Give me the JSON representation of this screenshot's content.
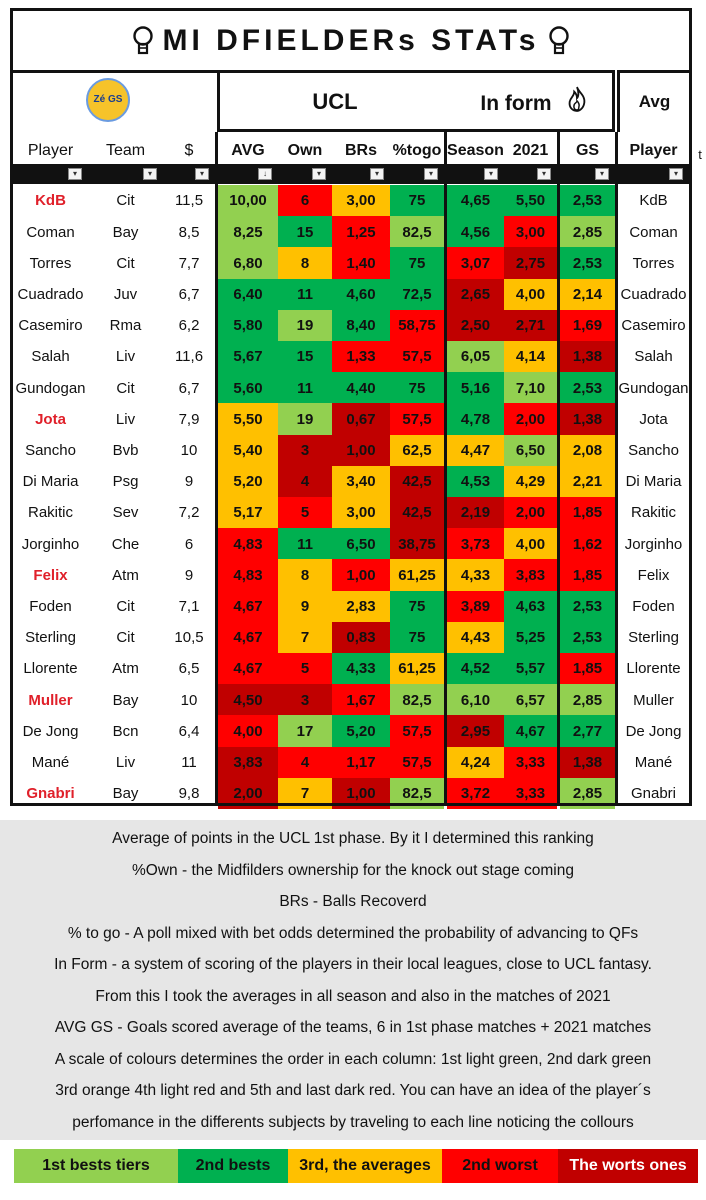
{
  "title": "MI DFIELDERs STATs",
  "logo_text": "Zé GS",
  "headers": {
    "ucl": "UCL",
    "in_form": "In form",
    "avg": "Avg",
    "col_player": "Player",
    "col_team": "Team",
    "col_price": "$",
    "col_avg": "AVG",
    "col_own": "Own",
    "col_brs": "BRs",
    "col_togo": "%togo",
    "col_season": "Season",
    "col_2021": "2021",
    "col_gs": "GS",
    "col_player2": "Player",
    "stray": "t"
  },
  "colors": {
    "light_green": "#92d050",
    "dark_green": "#00b050",
    "orange": "#ffc000",
    "light_red": "#ff0000",
    "dark_red": "#c00000"
  },
  "rows": [
    {
      "player": "KdB",
      "hl": true,
      "team": "Cit",
      "price": "11,5",
      "avg": [
        "10,00",
        "lg"
      ],
      "own": [
        "6",
        "lr"
      ],
      "brs": [
        "3,00",
        "or"
      ],
      "togo": [
        "75",
        "dg"
      ],
      "season": [
        "4,65",
        "dg"
      ],
      "y2021": [
        "5,50",
        "dg"
      ],
      "gs": [
        "2,53",
        "dg"
      ],
      "player2": "KdB"
    },
    {
      "player": "Coman",
      "hl": false,
      "team": "Bay",
      "price": "8,5",
      "avg": [
        "8,25",
        "lg"
      ],
      "own": [
        "15",
        "dg"
      ],
      "brs": [
        "1,25",
        "lr"
      ],
      "togo": [
        "82,5",
        "lg"
      ],
      "season": [
        "4,56",
        "dg"
      ],
      "y2021": [
        "3,00",
        "lr"
      ],
      "gs": [
        "2,85",
        "lg"
      ],
      "player2": "Coman"
    },
    {
      "player": "Torres",
      "hl": false,
      "team": "Cit",
      "price": "7,7",
      "avg": [
        "6,80",
        "lg"
      ],
      "own": [
        "8",
        "or"
      ],
      "brs": [
        "1,40",
        "lr"
      ],
      "togo": [
        "75",
        "dg"
      ],
      "season": [
        "3,07",
        "lr"
      ],
      "y2021": [
        "2,75",
        "dr"
      ],
      "gs": [
        "2,53",
        "dg"
      ],
      "player2": "Torres"
    },
    {
      "player": "Cuadrado",
      "hl": false,
      "team": "Juv",
      "price": "6,7",
      "avg": [
        "6,40",
        "dg"
      ],
      "own": [
        "11",
        "dg"
      ],
      "brs": [
        "4,60",
        "dg"
      ],
      "togo": [
        "72,5",
        "dg"
      ],
      "season": [
        "2,65",
        "dr"
      ],
      "y2021": [
        "4,00",
        "or"
      ],
      "gs": [
        "2,14",
        "or"
      ],
      "player2": "Cuadrado"
    },
    {
      "player": "Casemiro",
      "hl": false,
      "team": "Rma",
      "price": "6,2",
      "avg": [
        "5,80",
        "dg"
      ],
      "own": [
        "19",
        "lg"
      ],
      "brs": [
        "8,40",
        "dg"
      ],
      "togo": [
        "58,75",
        "lr"
      ],
      "season": [
        "2,50",
        "dr"
      ],
      "y2021": [
        "2,71",
        "dr"
      ],
      "gs": [
        "1,69",
        "lr"
      ],
      "player2": "Casemiro"
    },
    {
      "player": "Salah",
      "hl": false,
      "team": "Liv",
      "price": "11,6",
      "avg": [
        "5,67",
        "dg"
      ],
      "own": [
        "15",
        "dg"
      ],
      "brs": [
        "1,33",
        "lr"
      ],
      "togo": [
        "57,5",
        "lr"
      ],
      "season": [
        "6,05",
        "lg"
      ],
      "y2021": [
        "4,14",
        "or"
      ],
      "gs": [
        "1,38",
        "dr"
      ],
      "player2": "Salah"
    },
    {
      "player": "Gundogan",
      "hl": false,
      "team": "Cit",
      "price": "6,7",
      "avg": [
        "5,60",
        "dg"
      ],
      "own": [
        "11",
        "dg"
      ],
      "brs": [
        "4,40",
        "dg"
      ],
      "togo": [
        "75",
        "dg"
      ],
      "season": [
        "5,16",
        "dg"
      ],
      "y2021": [
        "7,10",
        "lg"
      ],
      "gs": [
        "2,53",
        "dg"
      ],
      "player2": "Gundogan"
    },
    {
      "player": "Jota",
      "hl": true,
      "team": "Liv",
      "price": "7,9",
      "avg": [
        "5,50",
        "or"
      ],
      "own": [
        "19",
        "lg"
      ],
      "brs": [
        "0,67",
        "dr"
      ],
      "togo": [
        "57,5",
        "lr"
      ],
      "season": [
        "4,78",
        "dg"
      ],
      "y2021": [
        "2,00",
        "lr"
      ],
      "gs": [
        "1,38",
        "dr"
      ],
      "player2": "Jota"
    },
    {
      "player": "Sancho",
      "hl": false,
      "team": "Bvb",
      "price": "10",
      "avg": [
        "5,40",
        "or"
      ],
      "own": [
        "3",
        "dr"
      ],
      "brs": [
        "1,00",
        "dr"
      ],
      "togo": [
        "62,5",
        "or"
      ],
      "season": [
        "4,47",
        "or"
      ],
      "y2021": [
        "6,50",
        "lg"
      ],
      "gs": [
        "2,08",
        "or"
      ],
      "player2": "Sancho"
    },
    {
      "player": "Di Maria",
      "hl": false,
      "team": "Psg",
      "price": "9",
      "avg": [
        "5,20",
        "or"
      ],
      "own": [
        "4",
        "dr"
      ],
      "brs": [
        "3,40",
        "or"
      ],
      "togo": [
        "42,5",
        "dr"
      ],
      "season": [
        "4,53",
        "dg"
      ],
      "y2021": [
        "4,29",
        "or"
      ],
      "gs": [
        "2,21",
        "or"
      ],
      "player2": "Di Maria"
    },
    {
      "player": "Rakitic",
      "hl": false,
      "team": "Sev",
      "price": "7,2",
      "avg": [
        "5,17",
        "or"
      ],
      "own": [
        "5",
        "lr"
      ],
      "brs": [
        "3,00",
        "or"
      ],
      "togo": [
        "42,5",
        "dr"
      ],
      "season": [
        "2,19",
        "dr"
      ],
      "y2021": [
        "2,00",
        "lr"
      ],
      "gs": [
        "1,85",
        "lr"
      ],
      "player2": "Rakitic"
    },
    {
      "player": "Jorginho",
      "hl": false,
      "team": "Che",
      "price": "6",
      "avg": [
        "4,83",
        "lr"
      ],
      "own": [
        "11",
        "dg"
      ],
      "brs": [
        "6,50",
        "dg"
      ],
      "togo": [
        "38,75",
        "dr"
      ],
      "season": [
        "3,73",
        "lr"
      ],
      "y2021": [
        "4,00",
        "or"
      ],
      "gs": [
        "1,62",
        "lr"
      ],
      "player2": "Jorginho"
    },
    {
      "player": "Felix",
      "hl": true,
      "team": "Atm",
      "price": "9",
      "avg": [
        "4,83",
        "lr"
      ],
      "own": [
        "8",
        "or"
      ],
      "brs": [
        "1,00",
        "lr"
      ],
      "togo": [
        "61,25",
        "or"
      ],
      "season": [
        "4,33",
        "or"
      ],
      "y2021": [
        "3,83",
        "lr"
      ],
      "gs": [
        "1,85",
        "lr"
      ],
      "player2": "Felix"
    },
    {
      "player": "Foden",
      "hl": false,
      "team": "Cit",
      "price": "7,1",
      "avg": [
        "4,67",
        "lr"
      ],
      "own": [
        "9",
        "or"
      ],
      "brs": [
        "2,83",
        "or"
      ],
      "togo": [
        "75",
        "dg"
      ],
      "season": [
        "3,89",
        "lr"
      ],
      "y2021": [
        "4,63",
        "dg"
      ],
      "gs": [
        "2,53",
        "dg"
      ],
      "player2": "Foden"
    },
    {
      "player": "Sterling",
      "hl": false,
      "team": "Cit",
      "price": "10,5",
      "avg": [
        "4,67",
        "lr"
      ],
      "own": [
        "7",
        "or"
      ],
      "brs": [
        "0,83",
        "dr"
      ],
      "togo": [
        "75",
        "dg"
      ],
      "season": [
        "4,43",
        "or"
      ],
      "y2021": [
        "5,25",
        "dg"
      ],
      "gs": [
        "2,53",
        "dg"
      ],
      "player2": "Sterling"
    },
    {
      "player": "Llorente",
      "hl": false,
      "team": "Atm",
      "price": "6,5",
      "avg": [
        "4,67",
        "lr"
      ],
      "own": [
        "5",
        "lr"
      ],
      "brs": [
        "4,33",
        "dg"
      ],
      "togo": [
        "61,25",
        "or"
      ],
      "season": [
        "4,52",
        "dg"
      ],
      "y2021": [
        "5,57",
        "dg"
      ],
      "gs": [
        "1,85",
        "lr"
      ],
      "player2": "Llorente"
    },
    {
      "player": "Muller",
      "hl": true,
      "team": "Bay",
      "price": "10",
      "avg": [
        "4,50",
        "dr"
      ],
      "own": [
        "3",
        "dr"
      ],
      "brs": [
        "1,67",
        "lr"
      ],
      "togo": [
        "82,5",
        "lg"
      ],
      "season": [
        "6,10",
        "lg"
      ],
      "y2021": [
        "6,57",
        "lg"
      ],
      "gs": [
        "2,85",
        "lg"
      ],
      "player2": "Muller"
    },
    {
      "player": "De Jong",
      "hl": false,
      "team": "Bcn",
      "price": "6,4",
      "avg": [
        "4,00",
        "lr"
      ],
      "own": [
        "17",
        "lg"
      ],
      "brs": [
        "5,20",
        "dg"
      ],
      "togo": [
        "57,5",
        "lr"
      ],
      "season": [
        "2,95",
        "dr"
      ],
      "y2021": [
        "4,67",
        "dg"
      ],
      "gs": [
        "2,77",
        "dg"
      ],
      "player2": "De Jong"
    },
    {
      "player": "Mané",
      "hl": false,
      "team": "Liv",
      "price": "11",
      "avg": [
        "3,83",
        "dr"
      ],
      "own": [
        "4",
        "lr"
      ],
      "brs": [
        "1,17",
        "lr"
      ],
      "togo": [
        "57,5",
        "lr"
      ],
      "season": [
        "4,24",
        "or"
      ],
      "y2021": [
        "3,33",
        "lr"
      ],
      "gs": [
        "1,38",
        "dr"
      ],
      "player2": "Mané"
    },
    {
      "player": "Gnabri",
      "hl": true,
      "team": "Bay",
      "price": "9,8",
      "avg": [
        "2,00",
        "dr"
      ],
      "own": [
        "7",
        "or"
      ],
      "brs": [
        "1,00",
        "dr"
      ],
      "togo": [
        "82,5",
        "lg"
      ],
      "season": [
        "3,72",
        "lr"
      ],
      "y2021": [
        "3,33",
        "lr"
      ],
      "gs": [
        "2,85",
        "lg"
      ],
      "player2": "Gnabri"
    }
  ],
  "notes": [
    "Average of points in the UCL 1st phase. By it I determined this ranking",
    "%Own - the Midfilders ownership for the knock out stage coming",
    "BRs - Balls Recoverd",
    "% to go - A poll mixed with bet odds determined the probability of advancing to QFs",
    "In Form - a system of scoring of the players  in their local leagues, close to UCL fantasy.",
    "From this I took the averages in all season and also in the matches of 2021",
    "AVG GS - Goals scored average of the teams, 6 in 1st phase matches + 2021 matches",
    "A scale of colours determines the order in each column: 1st light green, 2nd dark green",
    "3rd orange 4th light red and 5th and last dark red. You can have an idea of the player´s",
    "perfomance in the differents subjects by traveling to each line noticing the collours"
  ],
  "legend": [
    {
      "label": "1st bests tiers",
      "key": "lg",
      "text_color": "#111111"
    },
    {
      "label": "2nd bests",
      "key": "dg",
      "text_color": "#111111"
    },
    {
      "label": "3rd, the averages",
      "key": "or",
      "text_color": "#111111"
    },
    {
      "label": "2nd worst",
      "key": "lr",
      "text_color": "#111111"
    },
    {
      "label": "The worts ones",
      "key": "dr",
      "text_color": "#ffffff"
    }
  ]
}
